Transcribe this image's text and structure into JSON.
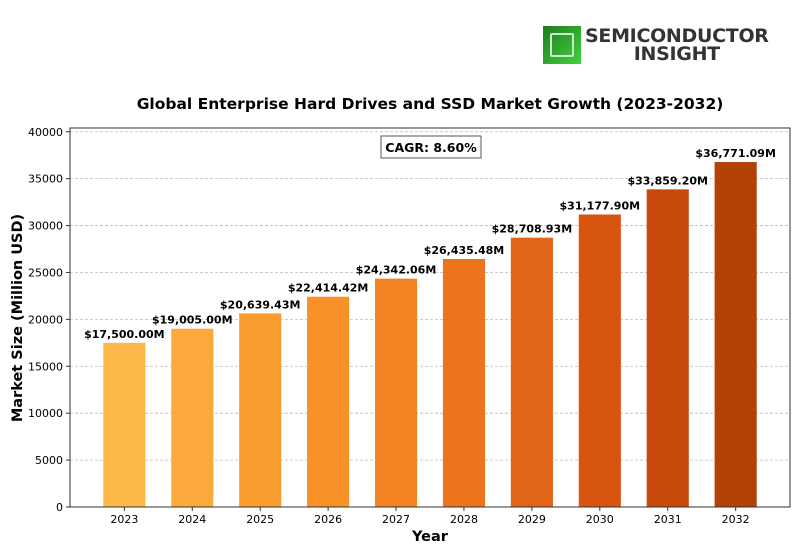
{
  "logo": {
    "line1": "SEMICONDUCTOR",
    "line2": "INSIGHT"
  },
  "chart_data": {
    "type": "bar",
    "title": "Global Enterprise Hard Drives and SSD Market Growth (2023-2032)",
    "xlabel": "Year",
    "ylabel": "Market Size (Million USD)",
    "categories": [
      "2023",
      "2024",
      "2025",
      "2026",
      "2027",
      "2028",
      "2029",
      "2030",
      "2031",
      "2032"
    ],
    "values": [
      17500.0,
      19005.0,
      20639.43,
      22414.42,
      24342.06,
      26435.48,
      28708.93,
      31177.9,
      33859.2,
      36771.09
    ],
    "data_labels": [
      "$17,500.00M",
      "$19,005.00M",
      "$20,639.43M",
      "$22,414.42M",
      "$24,342.06M",
      "$26,435.48M",
      "$28,708.93M",
      "$31,177.90M",
      "$33,859.20M",
      "$36,771.09M"
    ],
    "colors": [
      "#FDB84A",
      "#FDAA3C",
      "#FB9C2E",
      "#F89128",
      "#F38322",
      "#EC741C",
      "#E26416",
      "#D85510",
      "#C9490A",
      "#B34106"
    ],
    "yticks": [
      0,
      5000,
      10000,
      15000,
      20000,
      25000,
      30000,
      35000,
      40000
    ],
    "ylim": [
      0,
      40400
    ],
    "grid": "y-dashed",
    "annotation": "CAGR: 8.60%"
  }
}
